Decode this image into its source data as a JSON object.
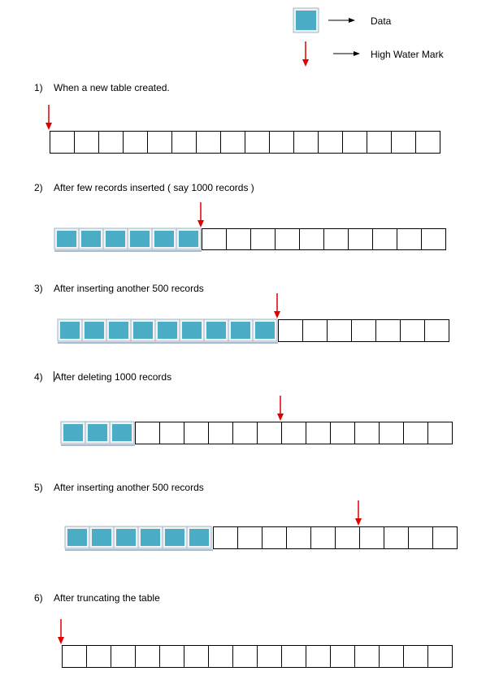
{
  "legend": {
    "data_label": "Data",
    "hwm_label": "High Water Mark",
    "colors": {
      "data_fill": "#4bacc6",
      "data_border": "#9fb6c8",
      "hwm_arrow": "#e00000"
    }
  },
  "rows": [
    {
      "number": "1)",
      "caption": "When a new table created.",
      "data_blocks": 0,
      "empty_cells": 16,
      "hwm_after_cell": 0
    },
    {
      "number": "2)",
      "caption": "After few records inserted ( say 1000 records )",
      "data_blocks": 6,
      "empty_cells": 10,
      "hwm_after_cell": 6
    },
    {
      "number": "3)",
      "caption": "After inserting another 500 records",
      "data_blocks": 9,
      "empty_cells": 7,
      "hwm_after_cell": 9
    },
    {
      "number": "4)",
      "caption": "After deleting 1000 records",
      "data_blocks": 3,
      "empty_cells": 13,
      "hwm_after_cell": 9
    },
    {
      "number": "5)",
      "caption": "After inserting another 500 records",
      "data_blocks": 6,
      "empty_cells": 10,
      "hwm_after_cell": 12
    },
    {
      "number": "6)",
      "caption": "After truncating the table",
      "data_blocks": 0,
      "empty_cells": 16,
      "hwm_after_cell": 0
    }
  ]
}
